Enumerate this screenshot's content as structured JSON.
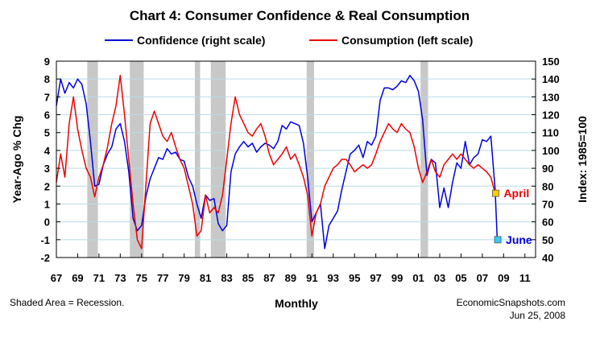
{
  "chart_data": {
    "type": "line",
    "title": "Chart 4: Consumer Confidence & Real Consumption",
    "xlabel": "Monthly",
    "ylabel_left": "Year-Ago % Chg",
    "ylabel_right": "Index: 1985=100",
    "ylim_left": [
      -2,
      9
    ],
    "ylim_right": [
      40,
      150
    ],
    "xlim": [
      1967,
      2012
    ],
    "x_tick_labels": [
      "67",
      "69",
      "71",
      "73",
      "75",
      "77",
      "79",
      "81",
      "83",
      "85",
      "87",
      "89",
      "91",
      "93",
      "95",
      "97",
      "99",
      "01",
      "03",
      "05",
      "07",
      "09",
      "11"
    ],
    "y_left_ticks": [
      "-2",
      "-1",
      "0",
      "1",
      "2",
      "3",
      "4",
      "5",
      "6",
      "7",
      "8",
      "9"
    ],
    "y_right_ticks": [
      "40",
      "50",
      "60",
      "70",
      "80",
      "90",
      "100",
      "110",
      "120",
      "130",
      "140",
      "150"
    ],
    "grid": true,
    "legend_position": "top",
    "recessions": [
      [
        1969.9,
        1970.9
      ],
      [
        1973.9,
        1975.2
      ],
      [
        1980.0,
        1980.5
      ],
      [
        1981.5,
        1982.9
      ],
      [
        1990.5,
        1991.2
      ],
      [
        2001.2,
        2001.9
      ]
    ],
    "series": [
      {
        "name": "Confidence (right scale)",
        "axis": "right",
        "color": "#0000dd",
        "x": [
          1967.0,
          1967.4,
          1967.8,
          1968.2,
          1968.6,
          1969.0,
          1969.4,
          1969.8,
          1970.2,
          1970.6,
          1971.0,
          1971.4,
          1971.8,
          1972.2,
          1972.6,
          1973.0,
          1973.4,
          1973.8,
          1974.2,
          1974.6,
          1975.0,
          1975.4,
          1975.8,
          1976.2,
          1976.6,
          1977.0,
          1977.4,
          1977.8,
          1978.2,
          1978.6,
          1979.0,
          1979.4,
          1979.8,
          1980.2,
          1980.6,
          1981.0,
          1981.4,
          1981.8,
          1982.2,
          1982.6,
          1983.0,
          1983.4,
          1983.8,
          1984.2,
          1984.6,
          1985.0,
          1985.4,
          1985.8,
          1986.2,
          1986.6,
          1987.0,
          1987.4,
          1987.8,
          1988.2,
          1988.6,
          1989.0,
          1989.4,
          1989.8,
          1990.2,
          1990.6,
          1991.0,
          1991.4,
          1991.8,
          1992.2,
          1992.6,
          1993.0,
          1993.4,
          1993.8,
          1994.2,
          1994.6,
          1995.0,
          1995.4,
          1995.8,
          1996.2,
          1996.6,
          1997.0,
          1997.4,
          1997.8,
          1998.2,
          1998.6,
          1999.0,
          1999.4,
          1999.8,
          2000.2,
          2000.6,
          2001.0,
          2001.4,
          2001.8,
          2002.2,
          2002.6,
          2003.0,
          2003.4,
          2003.8,
          2004.2,
          2004.6,
          2005.0,
          2005.4,
          2005.8,
          2006.2,
          2006.6,
          2007.0,
          2007.4,
          2007.8,
          2008.2,
          2008.4
        ],
        "values": [
          125,
          140,
          132,
          138,
          135,
          140,
          137,
          126,
          105,
          80,
          81,
          92,
          98,
          102,
          112,
          115,
          105,
          88,
          62,
          55,
          58,
          74,
          84,
          90,
          96,
          95,
          101,
          98,
          99,
          95,
          94,
          85,
          80,
          70,
          62,
          75,
          72,
          73,
          59,
          55,
          58,
          88,
          98,
          102,
          105,
          102,
          104,
          99,
          102,
          104,
          103,
          101,
          105,
          114,
          112,
          116,
          115,
          114,
          104,
          85,
          60,
          65,
          70,
          45,
          58,
          62,
          66,
          78,
          88,
          98,
          100,
          103,
          96,
          105,
          103,
          108,
          128,
          135,
          135,
          134,
          136,
          139,
          138,
          142,
          139,
          133,
          117,
          86,
          95,
          93,
          68,
          79,
          68,
          82,
          93,
          90,
          105,
          92,
          96,
          98,
          106,
          105,
          108,
          78,
          50
        ]
      },
      {
        "name": "Consumption (left scale)",
        "axis": "left",
        "color": "#ee0000",
        "x": [
          1967.0,
          1967.4,
          1967.8,
          1968.2,
          1968.6,
          1969.0,
          1969.4,
          1969.8,
          1970.2,
          1970.6,
          1971.0,
          1971.4,
          1971.8,
          1972.2,
          1972.6,
          1973.0,
          1973.4,
          1973.8,
          1974.2,
          1974.6,
          1975.0,
          1975.4,
          1975.8,
          1976.2,
          1976.6,
          1977.0,
          1977.4,
          1977.8,
          1978.2,
          1978.6,
          1979.0,
          1979.4,
          1979.8,
          1980.2,
          1980.6,
          1981.0,
          1981.4,
          1981.8,
          1982.2,
          1982.6,
          1983.0,
          1983.4,
          1983.8,
          1984.2,
          1984.6,
          1985.0,
          1985.4,
          1985.8,
          1986.2,
          1986.6,
          1987.0,
          1987.4,
          1987.8,
          1988.2,
          1988.6,
          1989.0,
          1989.4,
          1989.8,
          1990.2,
          1990.6,
          1991.0,
          1991.4,
          1991.8,
          1992.2,
          1992.6,
          1993.0,
          1993.4,
          1993.8,
          1994.2,
          1994.6,
          1995.0,
          1995.4,
          1995.8,
          1996.2,
          1996.6,
          1997.0,
          1997.4,
          1997.8,
          1998.2,
          1998.6,
          1999.0,
          1999.4,
          1999.8,
          2000.2,
          2000.6,
          2001.0,
          2001.4,
          2001.8,
          2002.2,
          2002.6,
          2003.0,
          2003.4,
          2003.8,
          2004.2,
          2004.6,
          2005.0,
          2005.4,
          2005.8,
          2006.2,
          2006.6,
          2007.0,
          2007.4,
          2007.8,
          2008.2,
          2008.4
        ],
        "values": [
          2.2,
          3.8,
          2.5,
          5.5,
          7.0,
          5.2,
          4.0,
          3.0,
          2.5,
          1.4,
          2.5,
          3.2,
          4.2,
          5.5,
          6.5,
          8.2,
          6.0,
          3.5,
          1.0,
          -1.0,
          -1.5,
          2.0,
          5.5,
          6.2,
          5.5,
          4.8,
          4.5,
          5.0,
          4.2,
          3.5,
          3.0,
          2.0,
          1.0,
          -0.8,
          -0.5,
          1.5,
          0.5,
          0.8,
          0.5,
          1.5,
          3.5,
          5.5,
          7.0,
          6.0,
          5.5,
          5.0,
          4.8,
          5.2,
          5.5,
          4.8,
          3.8,
          3.2,
          3.5,
          3.8,
          4.2,
          3.5,
          3.8,
          3.2,
          2.5,
          1.5,
          -0.8,
          0.5,
          1.0,
          2.0,
          2.5,
          3.0,
          3.2,
          3.5,
          3.5,
          3.2,
          2.8,
          3.0,
          3.2,
          3.0,
          3.2,
          3.8,
          4.5,
          5.0,
          5.5,
          5.2,
          5.0,
          5.5,
          5.2,
          5.0,
          4.2,
          3.0,
          2.2,
          2.8,
          3.5,
          2.8,
          2.5,
          3.2,
          3.5,
          3.8,
          3.5,
          3.8,
          3.5,
          3.2,
          3.0,
          3.2,
          3.0,
          2.8,
          2.5,
          1.6,
          1.6
        ]
      }
    ],
    "endpoints": [
      {
        "label": "April",
        "series": "Consumption (left scale)",
        "x": 2008.25,
        "value": 1.6,
        "marker_color": "#ffcc00",
        "text_color": "#ee0000"
      },
      {
        "label": "June",
        "series": "Confidence (right scale)",
        "x": 2008.45,
        "value": 50,
        "marker_color": "#33ccff",
        "text_color": "#0000dd"
      }
    ],
    "notes": {
      "left": "Shaded Area = Recession.",
      "right_line1": "EconomicSnapshots.com",
      "right_line2": "Jun 25, 2008"
    }
  }
}
